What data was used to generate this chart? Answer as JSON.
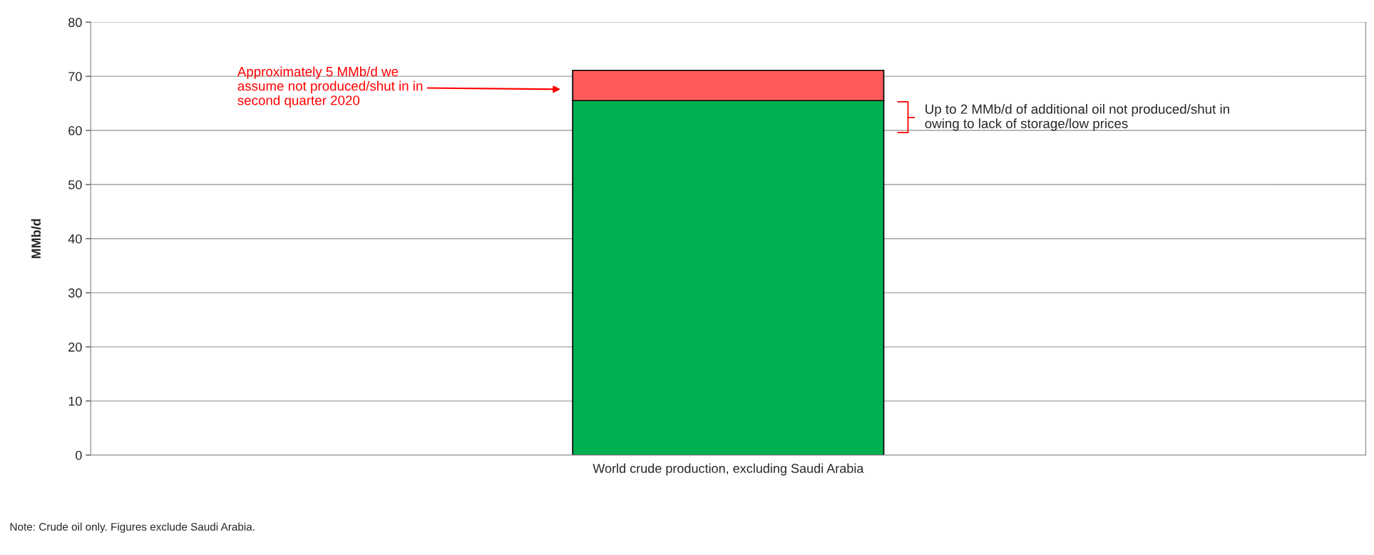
{
  "chart_data": {
    "type": "bar",
    "stacked": true,
    "ylabel": "MMb/d",
    "categories": [
      "World crude production, excluding Saudi Arabia"
    ],
    "series": [
      {
        "color": "#00b050",
        "values": [
          65.5
        ]
      },
      {
        "color": "#ff5a5a",
        "values": [
          5.6
        ]
      }
    ],
    "ylim": [
      0,
      80
    ],
    "yticks": [
      0,
      10,
      20,
      30,
      40,
      50,
      60,
      70,
      80
    ],
    "grid": "y",
    "legend": false,
    "annotations": [
      "Approximately 5 MMb/d we\nassume not produced/shut in in\nsecond quarter 2020",
      "Up to 2 MMb/d of additional oil not produced/shut in\nowing to lack of storage/low prices",
      "Note: Crude oil only. Figures exclude Saudi Arabia."
    ]
  }
}
